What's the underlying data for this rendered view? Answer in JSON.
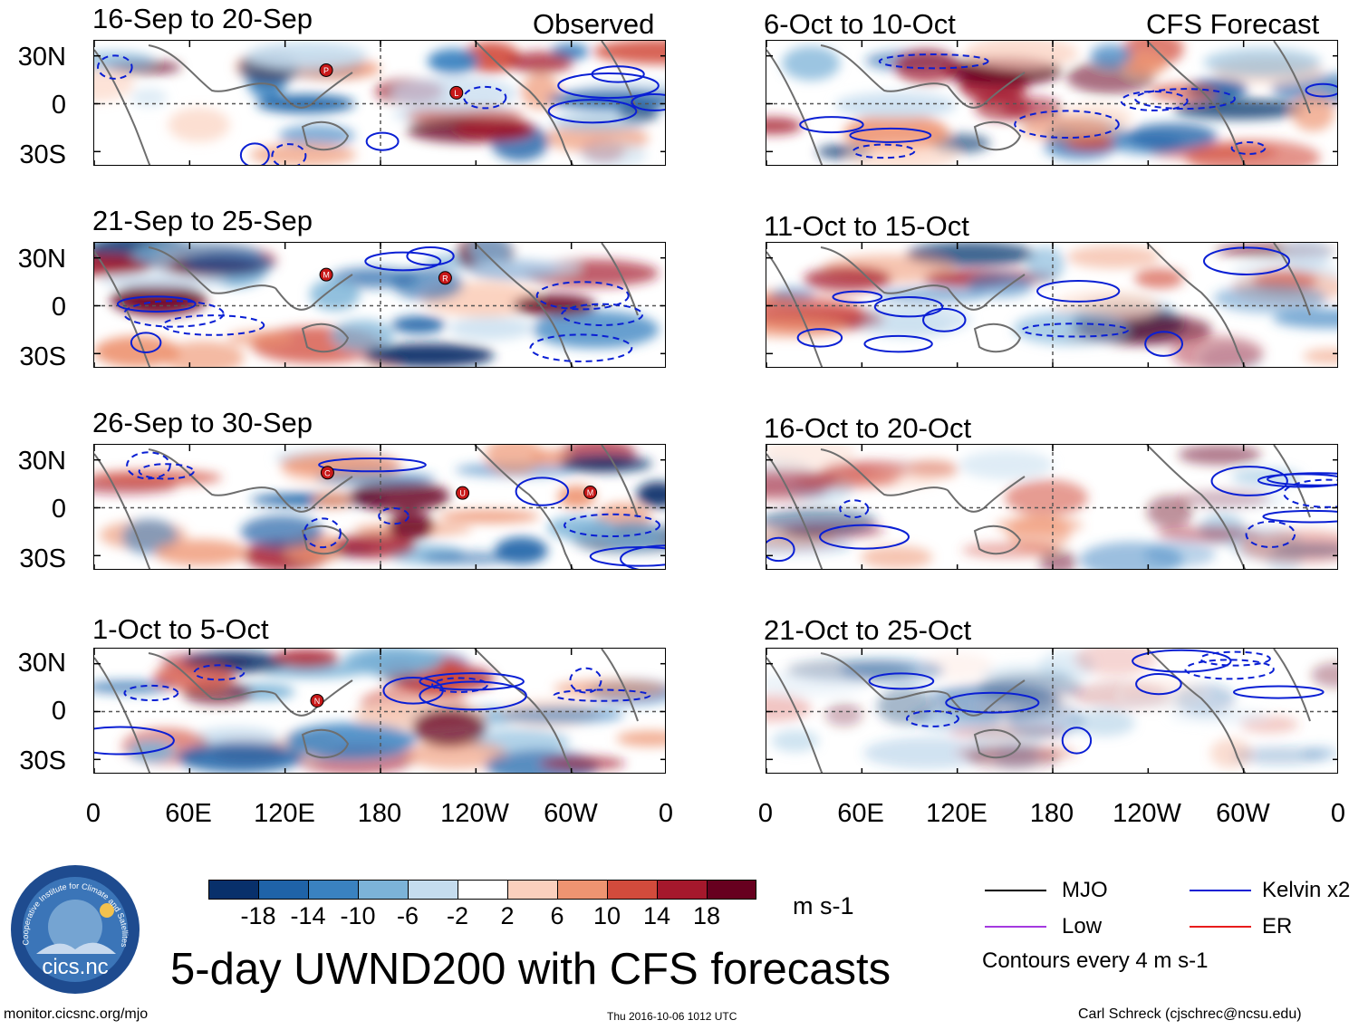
{
  "chart_data": {
    "type": "heatmap",
    "title": "5-day UWND200 with CFS forecasts",
    "variable": "200-hPa zonal wind anomaly",
    "units": "m s-1",
    "x_ticks": [
      "0",
      "60E",
      "120E",
      "180",
      "120W",
      "60W",
      "0"
    ],
    "y_ticks": [
      "30N",
      "0",
      "30S"
    ],
    "columns": [
      {
        "label": "Observed",
        "panels": [
          {
            "title": "16-Sep to 20-Sep",
            "storms": [
              "P",
              "L"
            ]
          },
          {
            "title": "21-Sep to 25-Sep",
            "storms": [
              "M",
              "R"
            ]
          },
          {
            "title": "26-Sep to 30-Sep",
            "storms": [
              "C",
              "U",
              "M"
            ]
          },
          {
            "title": "1-Oct to 5-Oct",
            "storms": [
              "N"
            ]
          }
        ]
      },
      {
        "label": "CFS Forecast",
        "panels": [
          {
            "title": "6-Oct to 10-Oct",
            "storms": []
          },
          {
            "title": "11-Oct to 15-Oct",
            "storms": []
          },
          {
            "title": "16-Oct to 20-Oct",
            "storms": []
          },
          {
            "title": "21-Oct to 25-Oct",
            "storms": []
          }
        ]
      }
    ],
    "colorbar": {
      "levels": [
        "-18",
        "-14",
        "-10",
        "-6",
        "-2",
        "2",
        "6",
        "10",
        "14",
        "18"
      ],
      "colors": [
        "#08306b",
        "#1f63a8",
        "#3a82c0",
        "#7cb3d8",
        "#c5dcee",
        "#ffffff",
        "#fbd0bd",
        "#ee9471",
        "#d24b3c",
        "#a5182c",
        "#67001f"
      ],
      "units": "m s-1"
    },
    "legend": [
      {
        "label": "MJO",
        "color": "#000000"
      },
      {
        "label": "Kelvin x2",
        "color": "#0a1fd4"
      },
      {
        "label": "Low",
        "color": "#a43ae0"
      },
      {
        "label": "ER",
        "color": "#e81c1c"
      }
    ],
    "contour_note": "Contours every 4 m s-1"
  },
  "logo": {
    "text": "cics.nc",
    "ring_text": "Cooperative Institute for Climate and Satellites"
  },
  "footer": {
    "left": "monitor.cicsnc.org/mjo",
    "center": "Thu 2016-10-06 1012 UTC",
    "right": "Carl Schreck (cjschrec@ncsu.edu)"
  }
}
